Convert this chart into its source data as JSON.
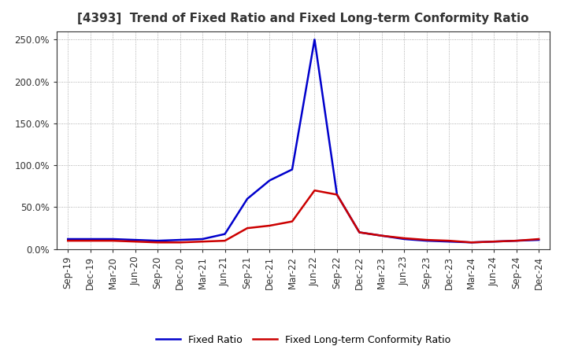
{
  "title": "[4393]  Trend of Fixed Ratio and Fixed Long-term Conformity Ratio",
  "title_fontsize": 11,
  "title_color": "#333333",
  "background_color": "#ffffff",
  "plot_bg_color": "#ffffff",
  "grid_color": "#999999",
  "border_color": "#333333",
  "ylim": [
    0.0,
    2.6
  ],
  "yticks": [
    0.0,
    0.5,
    1.0,
    1.5,
    2.0,
    2.5
  ],
  "ytick_labels": [
    "0.0%",
    "50.0%",
    "100.0%",
    "150.0%",
    "200.0%",
    "250.0%"
  ],
  "x_labels": [
    "Sep-19",
    "Dec-19",
    "Mar-20",
    "Jun-20",
    "Sep-20",
    "Dec-20",
    "Mar-21",
    "Jun-21",
    "Sep-21",
    "Dec-21",
    "Mar-22",
    "Jun-22",
    "Sep-22",
    "Dec-22",
    "Mar-23",
    "Jun-23",
    "Sep-23",
    "Dec-23",
    "Mar-24",
    "Jun-24",
    "Sep-24",
    "Dec-24"
  ],
  "fixed_ratio": [
    0.12,
    0.12,
    0.12,
    0.11,
    0.1,
    0.11,
    0.12,
    0.18,
    0.6,
    0.82,
    0.95,
    2.5,
    0.65,
    0.2,
    0.16,
    0.12,
    0.1,
    0.09,
    0.08,
    0.09,
    0.1,
    0.11
  ],
  "fixed_lt_ratio": [
    0.1,
    0.1,
    0.1,
    0.09,
    0.08,
    0.08,
    0.09,
    0.1,
    0.25,
    0.28,
    0.33,
    0.7,
    0.65,
    0.2,
    0.16,
    0.13,
    0.11,
    0.1,
    0.08,
    0.09,
    0.1,
    0.12
  ],
  "line_color_fixed": "#0000cc",
  "line_color_lt": "#cc0000",
  "line_width": 1.8,
  "legend_fixed": "Fixed Ratio",
  "legend_lt": "Fixed Long-term Conformity Ratio",
  "tick_fontsize": 8.5,
  "tick_color": "#333333"
}
